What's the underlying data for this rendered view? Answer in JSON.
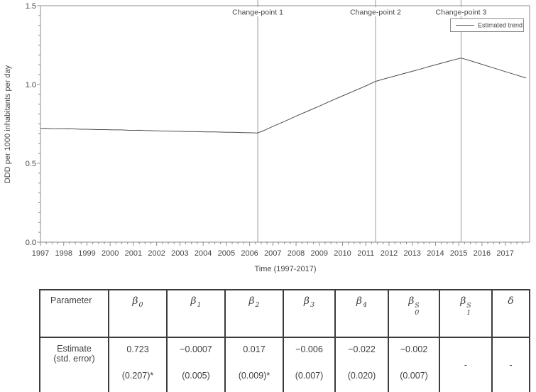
{
  "colors": {
    "text": "#474747",
    "axis": "#8c8c8c",
    "trend_line": "#4d4d4d",
    "change_point_line": "#999999",
    "table_border": "#3c3c3c",
    "background": "#ffffff"
  },
  "chart_data": {
    "type": "line",
    "title": "",
    "xlabel": "Time (1997-2017)",
    "ylabel": "DDD per 1000 inhabitants per day",
    "xlim": [
      1997,
      2018.05
    ],
    "ylim": [
      0,
      1.5
    ],
    "grid": "off",
    "x_major_ticks": [
      1997,
      1998,
      1999,
      2000,
      2001,
      2002,
      2003,
      2004,
      2005,
      2006,
      2007,
      2008,
      2009,
      2010,
      2011,
      2012,
      2013,
      2014,
      2015,
      2016,
      2017
    ],
    "x_minor_step": 0.25,
    "y_ticks": [
      [
        0,
        "0.0"
      ],
      [
        0.5,
        "0.5"
      ],
      [
        1,
        "1.0"
      ],
      [
        1.5,
        "1.5"
      ]
    ],
    "y_minor_step": 0.0625,
    "legend": {
      "label": "Estimated trend",
      "position": "top-right"
    },
    "change_points": [
      {
        "label": "Change-point 1",
        "x": 2006.35
      },
      {
        "label": "Change-point 2",
        "x": 2011.42
      },
      {
        "label": "Change-point 3",
        "x": 2015.1
      }
    ],
    "series": [
      {
        "name": "Estimated trend",
        "points": [
          [
            1997.0,
            0.721
          ],
          [
            1997.25,
            0.722
          ],
          [
            1997.5,
            0.72
          ],
          [
            1997.75,
            0.719
          ],
          [
            1998.0,
            0.719
          ],
          [
            1998.25,
            0.72
          ],
          [
            1998.5,
            0.718
          ],
          [
            1998.75,
            0.716
          ],
          [
            1999.0,
            0.716
          ],
          [
            1999.25,
            0.715
          ],
          [
            1999.5,
            0.714
          ],
          [
            1999.75,
            0.714
          ],
          [
            2000.0,
            0.713
          ],
          [
            2000.25,
            0.712
          ],
          [
            2000.5,
            0.712
          ],
          [
            2000.75,
            0.71
          ],
          [
            2001.0,
            0.709
          ],
          [
            2001.25,
            0.71
          ],
          [
            2001.5,
            0.708
          ],
          [
            2001.75,
            0.707
          ],
          [
            2002.0,
            0.706
          ],
          [
            2002.25,
            0.705
          ],
          [
            2002.5,
            0.705
          ],
          [
            2002.75,
            0.703
          ],
          [
            2003.0,
            0.703
          ],
          [
            2003.25,
            0.702
          ],
          [
            2003.5,
            0.702
          ],
          [
            2003.75,
            0.701
          ],
          [
            2004.0,
            0.7
          ],
          [
            2004.25,
            0.699
          ],
          [
            2004.5,
            0.699
          ],
          [
            2004.75,
            0.698
          ],
          [
            2005.0,
            0.697
          ],
          [
            2005.25,
            0.697
          ],
          [
            2005.5,
            0.696
          ],
          [
            2005.75,
            0.695
          ],
          [
            2006.0,
            0.694
          ],
          [
            2006.35,
            0.693
          ],
          [
            2006.6,
            0.707
          ],
          [
            2007.0,
            0.734
          ],
          [
            2007.5,
            0.766
          ],
          [
            2008.0,
            0.799
          ],
          [
            2008.5,
            0.831
          ],
          [
            2009.0,
            0.863
          ],
          [
            2009.5,
            0.896
          ],
          [
            2010.0,
            0.928
          ],
          [
            2010.5,
            0.959
          ],
          [
            2011.0,
            0.991
          ],
          [
            2011.42,
            1.02
          ],
          [
            2011.8,
            1.036
          ],
          [
            2012.2,
            1.052
          ],
          [
            2012.6,
            1.068
          ],
          [
            2013.0,
            1.084
          ],
          [
            2013.4,
            1.1
          ],
          [
            2013.8,
            1.117
          ],
          [
            2014.2,
            1.133
          ],
          [
            2014.6,
            1.149
          ],
          [
            2015.1,
            1.168
          ],
          [
            2015.5,
            1.151
          ],
          [
            2016.0,
            1.128
          ],
          [
            2016.5,
            1.105
          ],
          [
            2017.0,
            1.082
          ],
          [
            2017.4,
            1.064
          ],
          [
            2017.9,
            1.041
          ]
        ]
      }
    ]
  },
  "table": {
    "columns": [
      {
        "kind": "text",
        "label": "Parameter"
      },
      {
        "kind": "math",
        "base": "β",
        "sub": "0",
        "sup": ""
      },
      {
        "kind": "math",
        "base": "β",
        "sub": "1",
        "sup": ""
      },
      {
        "kind": "math",
        "base": "β",
        "sub": "2",
        "sup": ""
      },
      {
        "kind": "math",
        "base": "β",
        "sub": "3",
        "sup": ""
      },
      {
        "kind": "math",
        "base": "β",
        "sub": "4",
        "sup": ""
      },
      {
        "kind": "math",
        "base": "β",
        "sub": "0",
        "sup": "S"
      },
      {
        "kind": "math",
        "base": "β",
        "sub": "1",
        "sup": "S"
      },
      {
        "kind": "math",
        "base": "δ",
        "sub": "",
        "sup": ""
      }
    ],
    "row_header": [
      "Estimate",
      "(std. error)"
    ],
    "cells": [
      {
        "estimate": "0.723",
        "std_error": "(0.207)*",
        "dash": false
      },
      {
        "estimate": "−0.0007",
        "std_error": "(0.005)",
        "dash": false
      },
      {
        "estimate": "0.017",
        "std_error": "(0.009)*",
        "dash": false
      },
      {
        "estimate": "−0.006",
        "std_error": "(0.007)",
        "dash": false
      },
      {
        "estimate": "−0.022",
        "std_error": "(0.020)",
        "dash": false
      },
      {
        "estimate": "−0.002",
        "std_error": "(0.007)",
        "dash": false
      },
      {
        "estimate": "-",
        "std_error": "",
        "dash": true
      },
      {
        "estimate": "-",
        "std_error": "",
        "dash": true
      }
    ]
  }
}
